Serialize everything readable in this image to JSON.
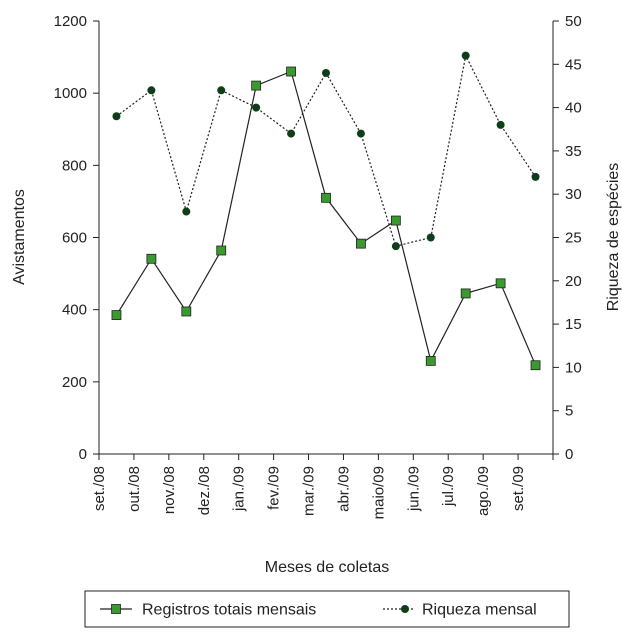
{
  "chart_data": {
    "type": "line",
    "xlabel": "Meses de coletas",
    "ylabel_left": "Avistamentos",
    "ylabel_right": "Riqueza de espécies",
    "x_tick_labels": [
      "set./08",
      "out./08",
      "nov./08",
      "dez./08",
      "jan./09",
      "fev./09",
      "mar./09",
      "abr./09",
      "maio/09",
      "jun./09",
      "jul./09",
      "ago./09",
      "set./09"
    ],
    "y_left": {
      "lim": [
        0,
        1200
      ],
      "ticks": [
        0,
        200,
        400,
        600,
        800,
        1000,
        1200
      ]
    },
    "y_right": {
      "lim": [
        0,
        50
      ],
      "ticks": [
        0,
        5,
        10,
        15,
        20,
        25,
        30,
        35,
        40,
        45,
        50
      ]
    },
    "series": [
      {
        "name": "Registros totais mensais",
        "axis": "left",
        "line_style": "solid",
        "marker": "square",
        "color": "#3a9a2f",
        "values": [
          385,
          541,
          395,
          564,
          1021,
          1060,
          710,
          583,
          647,
          258,
          445,
          473,
          246
        ]
      },
      {
        "name": "Riqueza mensal",
        "axis": "right",
        "line_style": "dotted",
        "marker": "circle",
        "color": "#0e3d1a",
        "values": [
          39,
          42,
          28,
          42,
          40,
          37,
          44,
          37,
          24,
          25,
          46,
          38,
          32
        ]
      }
    ],
    "legend_position": "bottom"
  }
}
